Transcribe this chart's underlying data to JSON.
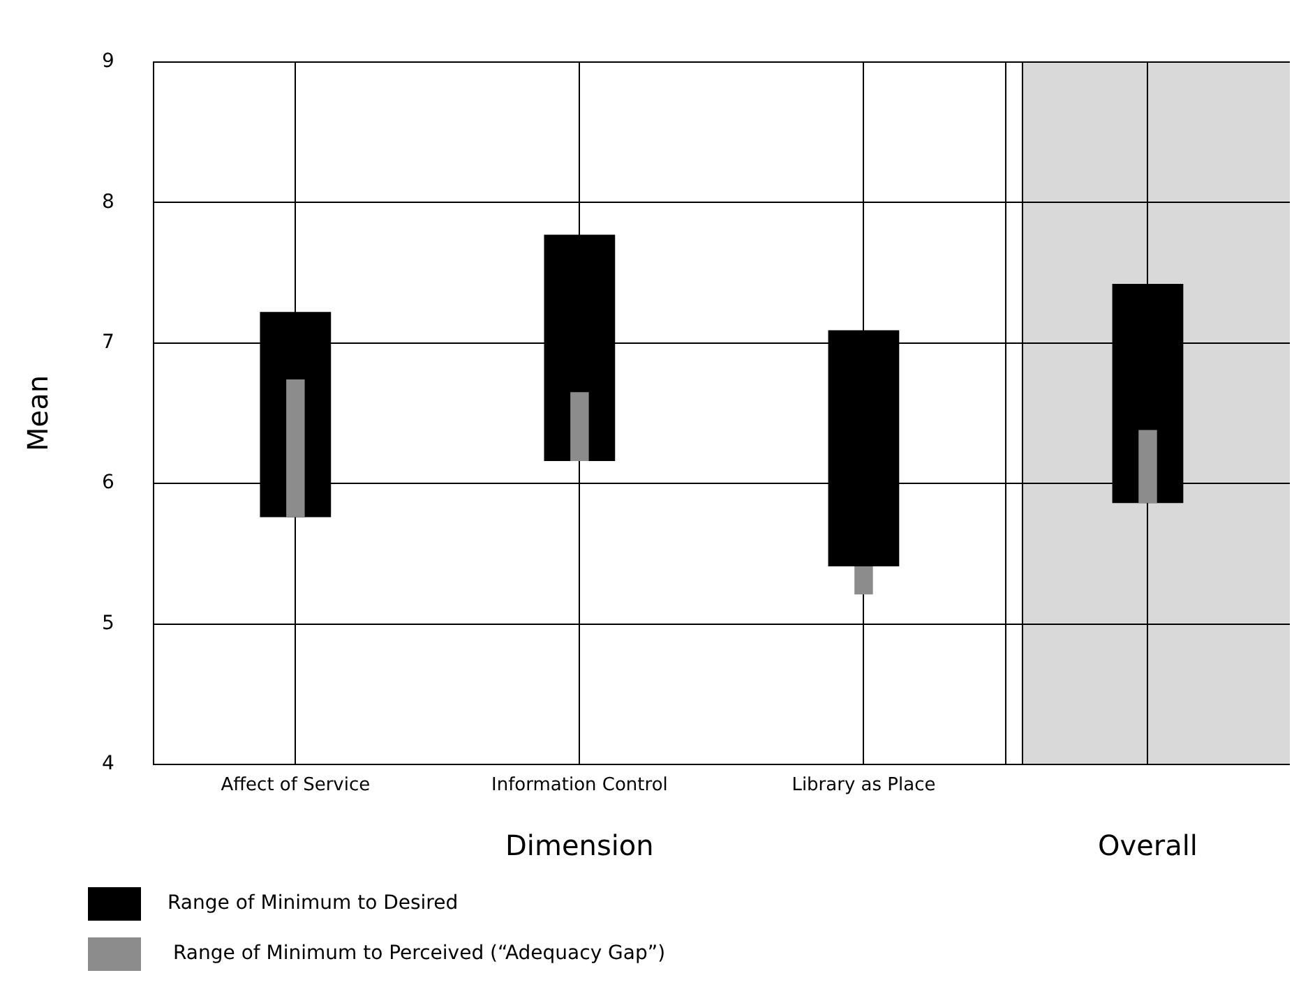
{
  "chart_data": {
    "type": "bar",
    "categories": [
      "Affect of Service",
      "Information Control",
      "Library as Place",
      "Overall"
    ],
    "series": [
      {
        "name": "Range of Minimum to Desired",
        "color": "#000000",
        "base": [
          5.76,
          6.16,
          5.41,
          5.86
        ],
        "values": [
          1.46,
          1.61,
          1.68,
          1.56
        ]
      },
      {
        "name": "Range of Minimum to Perceived (“Adequacy Gap”)",
        "color": "#8c8c8c",
        "base": [
          5.76,
          6.16,
          5.41,
          5.86
        ],
        "values": [
          0.98,
          0.49,
          -0.2,
          0.52
        ]
      }
    ],
    "xlabel": "Dimension",
    "ylabel": "Mean",
    "ylim": [
      4,
      9
    ],
    "yticks": [
      4,
      5,
      6,
      7,
      8,
      9
    ],
    "bands": [
      {
        "axis": "x",
        "from": "Overall",
        "to": "Overall",
        "color": "#d9d9d9"
      }
    ],
    "grid": true,
    "legend": "bottom left"
  }
}
